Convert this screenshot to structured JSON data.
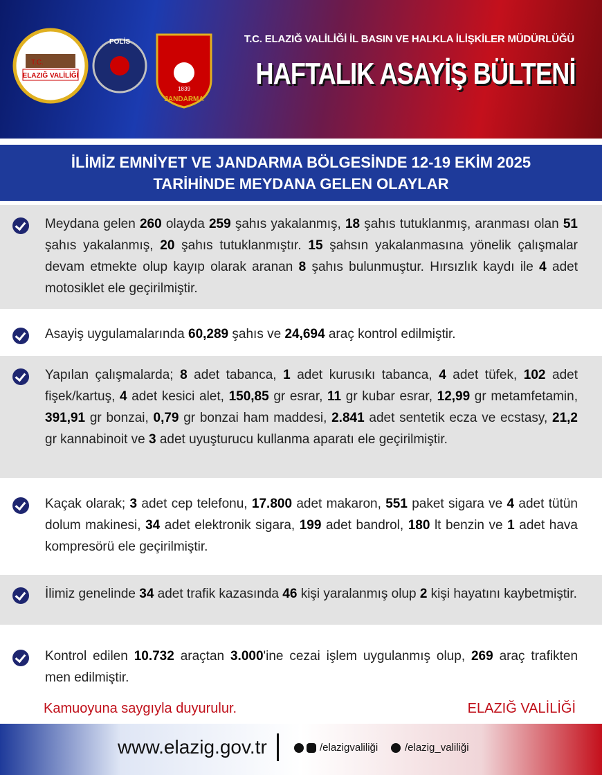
{
  "header": {
    "subtitle": "T.C. ELAZIĞ VALİLİĞİ İL BASIN VE HALKLA İLİŞKİLER MÜDÜRLÜĞÜ",
    "title": "HAFTALIK ASAYİŞ BÜLTENİ",
    "logos": {
      "valilik_top": "T.C.",
      "valilik": "ELAZIĞ VALİLİĞİ",
      "polis": "POLİS",
      "jandarma": "JANDARMA",
      "jandarma_year": "1839"
    }
  },
  "banner": {
    "line1": "İLİMİZ EMNİYET VE JANDARMA BÖLGESİNDE 12-19 EKİM 2025",
    "line2": "TARİHİNDE MEYDANA GELEN OLAYLAR"
  },
  "items": [
    [
      "Meydana gelen ",
      "260",
      " olayda ",
      "259",
      " şahıs yakalanmış, ",
      "18",
      " şahıs tutuklanmış, aranması olan ",
      "51",
      " şahıs yakalanmış, ",
      "20",
      " şahıs tutuklanmıştır. ",
      "15",
      " şahsın yakalanmasına yönelik çalışmalar devam etmekte olup kayıp olarak aranan ",
      "8",
      " şahıs bulunmuştur. Hırsızlık kaydı ile ",
      "4",
      " adet motosiklet ele geçirilmiştir."
    ],
    [
      "Asayiş uygulamalarında ",
      "60,289",
      " şahıs ve ",
      "24,694",
      " araç kontrol edilmiştir."
    ],
    [
      "Yapılan çalışmalarda; ",
      "8",
      " adet tabanca, ",
      "1",
      " adet kurusıkı tabanca, ",
      "4",
      " adet tüfek, ",
      "102",
      " adet fişek/kartuş, ",
      "4",
      " adet kesici alet, ",
      "150,85",
      " gr esrar, ",
      "11",
      " gr kubar esrar, ",
      "12,99",
      " gr metamfetamin, ",
      "391,91",
      " gr bonzai, ",
      "0,79",
      " gr bonzai ham maddesi, ",
      "2.841",
      " adet sentetik ecza ve ecstasy, ",
      "21,2",
      " gr kannabinoit ve ",
      "3",
      " adet uyuşturucu kullanma aparatı ele geçirilmiştir."
    ],
    [
      "Kaçak olarak; ",
      "3",
      " adet cep telefonu, ",
      "17.800",
      " adet makaron, ",
      "551",
      " paket sigara ve ",
      "4",
      " adet tütün dolum makinesi, ",
      "34",
      " adet elektronik sigara, ",
      "199",
      " adet bandrol, ",
      "180",
      " lt benzin ve ",
      "1",
      " adet hava kompresörü ele geçirilmiştir."
    ],
    [
      "İlimiz genelinde ",
      "34",
      " adet trafik kazasında ",
      "46",
      " kişi yaralanmış olup ",
      "2",
      " kişi hayatını kaybetmiştir."
    ],
    [
      "Kontrol edilen ",
      "10.732",
      " araçtan ",
      "3.000",
      "'ine cezai işlem uygulanmış olup, ",
      "269",
      " araç trafikten men edilmiştir."
    ]
  ],
  "footer": {
    "left": "Kamuoyuna saygıyla duyurulur.",
    "right": "ELAZIĞ VALİLİĞİ",
    "website": "www.elazig.gov.tr",
    "social1": "/elazigvaliliği",
    "social2": "/elazig_valiliği"
  }
}
